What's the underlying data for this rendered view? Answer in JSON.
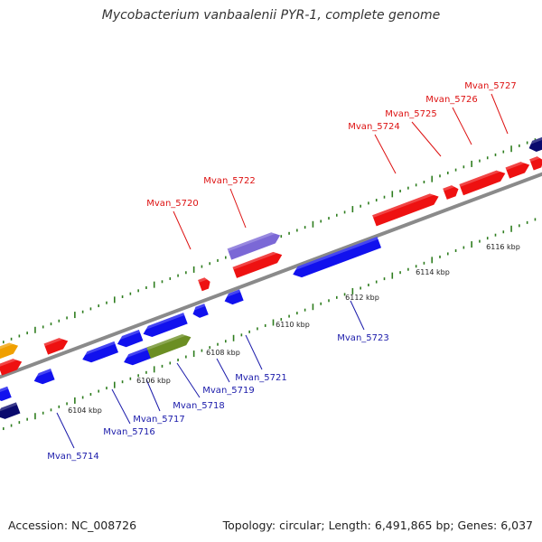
{
  "title": "Mycobacterium vanbaalenii PYR-1, complete genome",
  "footer": {
    "accession": "Accession: NC_008726",
    "summary": "Topology: circular; Length: 6,491,865 bp; Genes: 6,037"
  },
  "colors": {
    "backbone": "#8a8a8a",
    "tick": "#2e7d1e",
    "forward_label": "#dd1111",
    "reverse_label": "#1a1aaa",
    "red": "#ee1111",
    "blue": "#1111ee",
    "navy": "#0a0a6e",
    "purple": "#7b68d6",
    "olive": "#6b8e23",
    "orange": "#f0a000"
  },
  "scale_labels": [
    "6104 kbp",
    "6106 kbp",
    "6108 kbp",
    "6110 kbp",
    "6112 kbp",
    "6114 kbp",
    "6116 kbp"
  ],
  "forward_genes": [
    "Mvan_5720",
    "Mvan_5722",
    "Mvan_5724",
    "Mvan_5725",
    "Mvan_5726",
    "Mvan_5727"
  ],
  "reverse_genes": [
    "Mvan_5714",
    "Mvan_5716",
    "Mvan_5717",
    "Mvan_5718",
    "Mvan_5719",
    "Mvan_5721",
    "Mvan_5723"
  ]
}
